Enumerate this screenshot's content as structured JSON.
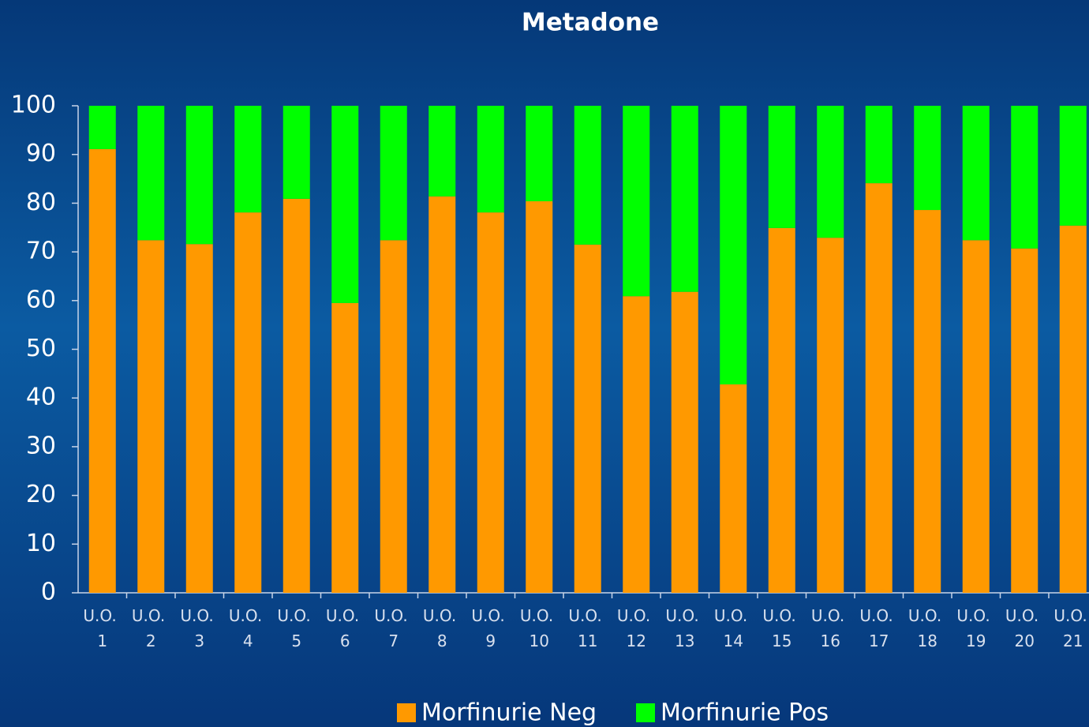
{
  "chart_data": {
    "type": "stacked_bar",
    "title": "Metadone",
    "categories": [
      "U.O. 1",
      "U.O. 2",
      "U.O. 3",
      "U.O. 4",
      "U.O. 5",
      "U.O. 6",
      "U.O. 7",
      "U.O. 8",
      "U.O. 9",
      "U.O. 10",
      "U.O. 11",
      "U.O. 12",
      "U.O. 13",
      "U.O. 14",
      "U.O. 15",
      "U.O. 16",
      "U.O. 17",
      "U.O. 18",
      "U.O. 19",
      "U.O. 20",
      "U.O. 21"
    ],
    "series": [
      {
        "name": "Morfinurie Neg",
        "color": "#ff9900",
        "values": [
          91.1,
          72.4,
          71.6,
          78.1,
          80.9,
          59.5,
          72.4,
          81.4,
          78.1,
          80.4,
          71.5,
          60.9,
          61.8,
          42.8,
          74.9,
          72.9,
          84.1,
          78.6,
          72.4,
          70.7,
          75.4
        ]
      },
      {
        "name": "Morfinurie Pos",
        "color": "#00ff00",
        "values": [
          8.9,
          27.6,
          28.4,
          21.9,
          19.1,
          40.5,
          27.6,
          18.6,
          21.9,
          19.6,
          28.5,
          39.1,
          38.2,
          57.2,
          25.1,
          27.1,
          15.9,
          21.4,
          27.6,
          29.3,
          24.6
        ]
      }
    ],
    "ylim": [
      0,
      100
    ],
    "yticks": [
      0,
      10,
      20,
      30,
      40,
      50,
      60,
      70,
      80,
      90,
      100
    ]
  }
}
